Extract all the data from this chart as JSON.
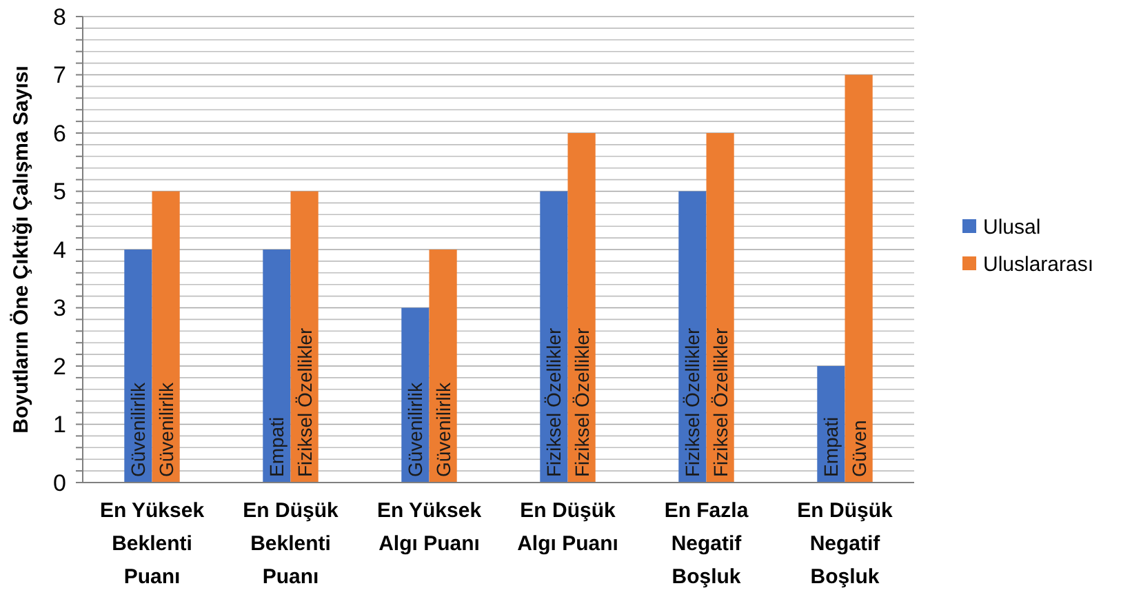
{
  "chart_data": {
    "type": "bar",
    "ylabel": "Boyutların Öne Çıktığı Çalışma Sayısı",
    "categories": [
      "En Yüksek Beklenti Puanı",
      "En Düşük Beklenti Puanı",
      "En Yüksek Algı Puanı",
      "En Düşük Algı Puanı",
      "En Fazla Negatif Boşluk",
      "En Düşük Negatif Boşluk"
    ],
    "series": [
      {
        "name": "Ulusal",
        "color": "#4472c4",
        "values": [
          4,
          4,
          3,
          5,
          5,
          2
        ],
        "value_labels": [
          "Güvenilirlik",
          "Empati",
          "Güvenilirlik",
          "Fiziksel Özellikler",
          "Fiziksel Özellikler",
          "Empati"
        ]
      },
      {
        "name": "Uluslararası",
        "color": "#ed7d31",
        "values": [
          5,
          5,
          4,
          6,
          6,
          7
        ],
        "value_labels": [
          "Güvenilirlik",
          "Fiziksel Özellikler",
          "Güvenilirlik",
          "Fiziksel Özellikler",
          "Fiziksel Özellikler",
          "Güven"
        ]
      }
    ],
    "ylim": [
      0,
      8
    ],
    "yticks": [
      0,
      {
        "value": 0.2,
        "label": null
      },
      {
        "value": 0.4,
        "label": null
      },
      {
        "value": 0.6,
        "label": null
      },
      {
        "value": 0.8,
        "label": null
      },
      1,
      {
        "value": 1.2,
        "label": null
      },
      {
        "value": 1.4,
        "label": null
      },
      {
        "value": 1.6,
        "label": null
      },
      {
        "value": 1.8,
        "label": null
      },
      2,
      {
        "value": 2.2,
        "label": null
      },
      {
        "value": 2.4,
        "label": null
      },
      {
        "value": 2.6,
        "label": null
      },
      {
        "value": 2.8,
        "label": null
      },
      3,
      {
        "value": 3.2,
        "label": null
      },
      {
        "value": 3.4,
        "label": null
      },
      {
        "value": 3.6,
        "label": null
      },
      {
        "value": 3.8,
        "label": null
      },
      4,
      {
        "value": 4.2,
        "label": null
      },
      {
        "value": 4.4,
        "label": null
      },
      {
        "value": 4.6,
        "label": null
      },
      {
        "value": 4.8,
        "label": null
      },
      5,
      {
        "value": 5.2,
        "label": null
      },
      {
        "value": 5.4,
        "label": null
      },
      {
        "value": 5.6,
        "label": null
      },
      {
        "value": 5.8,
        "label": null
      },
      6,
      {
        "value": 6.2,
        "label": null
      },
      {
        "value": 6.4,
        "label": null
      },
      {
        "value": 6.6,
        "label": null
      },
      {
        "value": 6.8,
        "label": null
      },
      7,
      {
        "value": 7.2,
        "label": null
      },
      {
        "value": 7.4,
        "label": null
      },
      {
        "value": 7.6,
        "label": null
      },
      {
        "value": 7.8,
        "label": null
      },
      8
    ],
    "grid": true,
    "legend": "right"
  }
}
